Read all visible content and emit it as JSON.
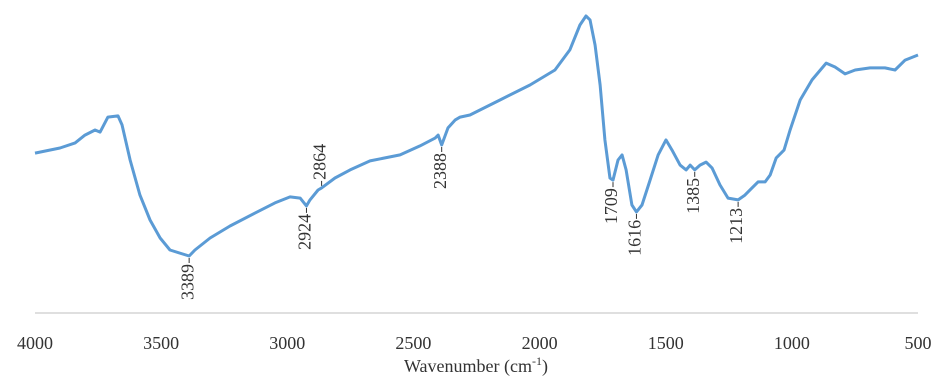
{
  "chart_data": {
    "type": "line",
    "xlabel": {
      "text": "Wavenumber (cm",
      "sup": "-1",
      "tail": ")"
    },
    "x": [
      4000,
      3901,
      3841,
      3802,
      3762,
      3742,
      3711,
      3671,
      3655,
      3623,
      3584,
      3544,
      3504,
      3465,
      3389,
      3366,
      3306,
      3227,
      3128,
      3049,
      2989,
      2949,
      2924,
      2910,
      2878,
      2864,
      2811,
      2751,
      2672,
      2553,
      2474,
      2414,
      2402,
      2388,
      2363,
      2335,
      2315,
      2276,
      2157,
      2038,
      1939,
      1880,
      1840,
      1816,
      1800,
      1780,
      1760,
      1741,
      1721,
      1709,
      1689,
      1673,
      1657,
      1634,
      1616,
      1594,
      1562,
      1530,
      1499,
      1475,
      1443,
      1419,
      1403,
      1385,
      1364,
      1340,
      1316,
      1285,
      1253,
      1213,
      1186,
      1158,
      1134,
      1106,
      1086,
      1062,
      1031,
      1007,
      967,
      920,
      864,
      829,
      789,
      749,
      690,
      631,
      591,
      551,
      500
    ],
    "series": [
      {
        "color": "#5b9bd5",
        "values": [
          53.3,
          55,
          56.7,
          59.3,
          61,
          60.3,
          65.3,
          65.7,
          62.7,
          51,
          39.3,
          31,
          25,
          21,
          19,
          21,
          25,
          29,
          33.3,
          36.7,
          38.7,
          38.3,
          35.7,
          37.7,
          41,
          41.7,
          45,
          47.7,
          50.7,
          52.7,
          55.7,
          58.3,
          59.3,
          56,
          61.7,
          64.3,
          65.3,
          66,
          71,
          76,
          81,
          87.7,
          96,
          99,
          97.7,
          89.3,
          76,
          57.7,
          45,
          44.3,
          51,
          52.7,
          47.7,
          36,
          33.7,
          36,
          44.3,
          52.7,
          57.7,
          54.3,
          49.3,
          47.7,
          49.3,
          47.7,
          49.3,
          50.3,
          48.3,
          42.7,
          38.3,
          37.7,
          39.3,
          41.7,
          43.7,
          43.7,
          46,
          51.7,
          54.3,
          61,
          71,
          77.7,
          83.3,
          82,
          79.7,
          81,
          81.7,
          81.7,
          81,
          84.3,
          86
        ]
      }
    ],
    "annotations": [
      {
        "x": 3389,
        "side": "below"
      },
      {
        "x": 2924,
        "side": "below"
      },
      {
        "x": 2864,
        "side": "above"
      },
      {
        "x": 2388,
        "side": "below"
      },
      {
        "x": 1709,
        "side": "below"
      },
      {
        "x": 1616,
        "side": "below"
      },
      {
        "x": 1385,
        "side": "below"
      },
      {
        "x": 1213,
        "side": "below"
      }
    ],
    "xlim": [
      4000,
      500
    ],
    "ylim": [
      0,
      100
    ],
    "xticks": [
      4000,
      3500,
      3000,
      2500,
      2000,
      1500,
      1000,
      500
    ]
  }
}
